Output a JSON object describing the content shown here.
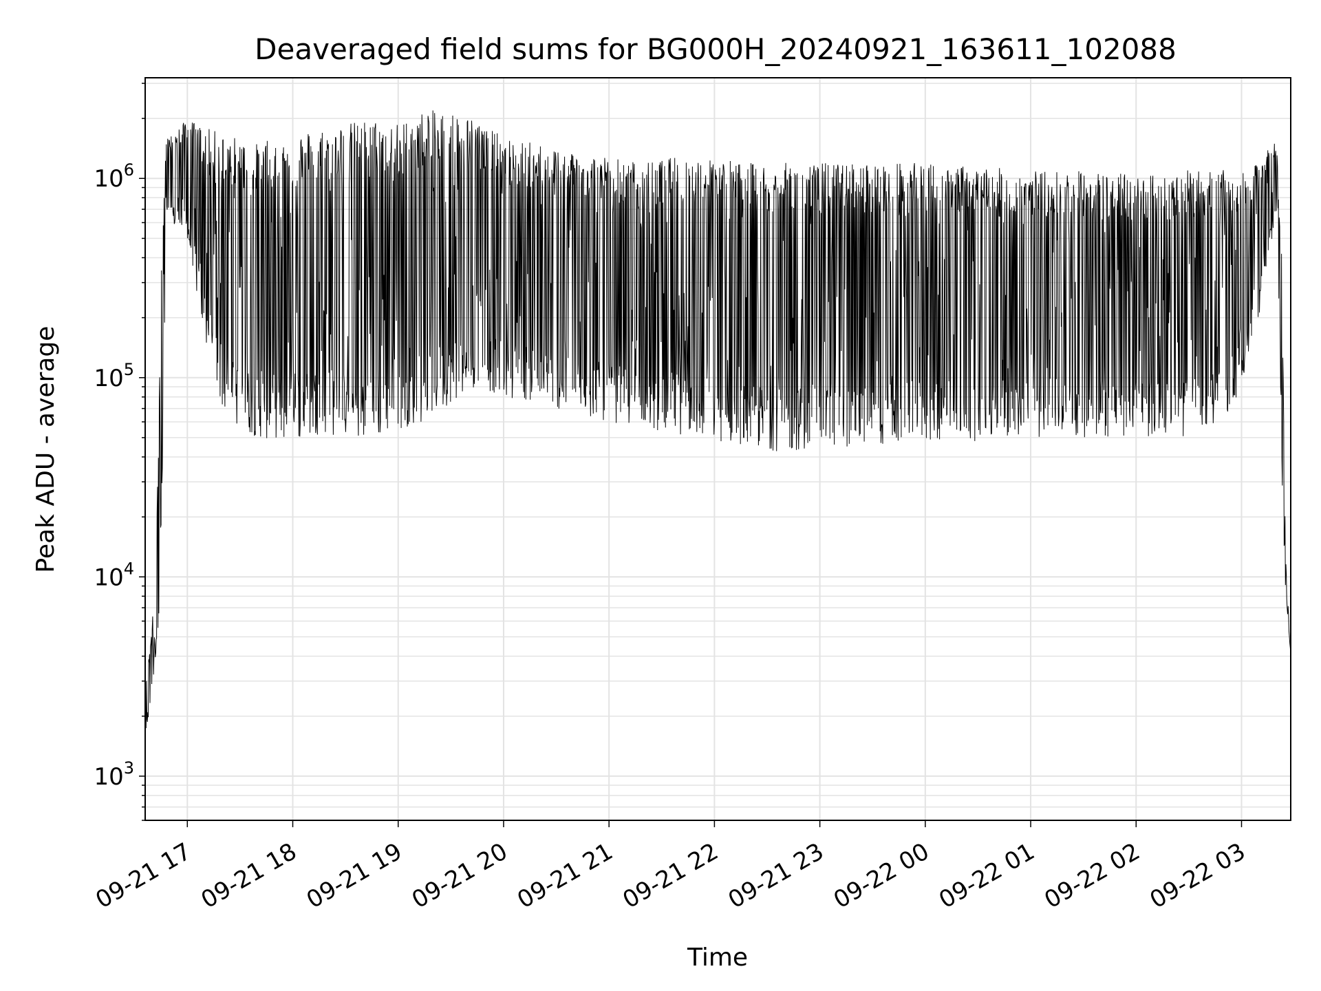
{
  "chart_data": {
    "type": "line",
    "title": "Deaveraged field sums for BG000H_20240921_163611_102088",
    "xlabel": "Time",
    "ylabel": "Peak ADU - average",
    "yscale": "log",
    "ylim": [
      600,
      3200000
    ],
    "xlim": [
      "09-21 16:36",
      "09-22 03:28"
    ],
    "grid": true,
    "line_color": "#000000",
    "grid_color": "#e3e3e3",
    "x_ticks": [
      "09-21 17",
      "09-21 18",
      "09-21 19",
      "09-21 20",
      "09-21 21",
      "09-21 22",
      "09-21 23",
      "09-22 00",
      "09-22 01",
      "09-22 02",
      "09-22 03"
    ],
    "y_ticks": [
      {
        "base": "10",
        "exp": "3",
        "value": 1000
      },
      {
        "base": "10",
        "exp": "4",
        "value": 10000
      },
      {
        "base": "10",
        "exp": "5",
        "value": 100000
      },
      {
        "base": "10",
        "exp": "6",
        "value": 1000000
      }
    ],
    "series": [
      {
        "envelope": {
          "x": [
            "09-21 16:36",
            "09-21 16:40",
            "09-21 16:43",
            "09-21 16:45",
            "09-21 16:48",
            "09-21 16:50",
            "09-21 17:00",
            "09-21 17:10",
            "09-21 17:20",
            "09-21 17:30",
            "09-21 17:40",
            "09-21 17:50",
            "09-21 18:00",
            "09-21 18:15",
            "09-21 18:30",
            "09-21 18:45",
            "09-21 19:00",
            "09-21 19:15",
            "09-21 19:30",
            "09-21 19:45",
            "09-21 20:00",
            "09-21 20:20",
            "09-21 20:40",
            "09-21 21:00",
            "09-21 21:20",
            "09-21 21:40",
            "09-21 22:00",
            "09-21 22:20",
            "09-21 22:40",
            "09-21 23:00",
            "09-21 23:30",
            "09-22 00:00",
            "09-22 00:30",
            "09-22 01:00",
            "09-22 01:30",
            "09-22 02:00",
            "09-22 02:30",
            "09-22 02:50",
            "09-22 03:00",
            "09-22 03:10",
            "09-22 03:15",
            "09-22 03:20",
            "09-22 03:23",
            "09-22 03:25",
            "09-22 03:28"
          ],
          "high": [
            2600,
            6000,
            28000,
            400000,
            1600000,
            1600000,
            2000000,
            1800000,
            1700000,
            1600000,
            1500000,
            1600000,
            1700000,
            1800000,
            1900000,
            2000000,
            1900000,
            2200000,
            2200000,
            2000000,
            1600000,
            1500000,
            1400000,
            1300000,
            1200000,
            1300000,
            1300000,
            1200000,
            1200000,
            1200000,
            1200000,
            1200000,
            1150000,
            1100000,
            1100000,
            1050000,
            1100000,
            1100000,
            1050000,
            1200000,
            1500000,
            1500000,
            400000,
            13000,
            4000
          ],
          "low": [
            1500,
            2600,
            5000,
            10000,
            600000,
            600000,
            500000,
            150000,
            70000,
            55000,
            50000,
            48000,
            48000,
            52000,
            50000,
            48000,
            55000,
            60000,
            75000,
            90000,
            80000,
            75000,
            65000,
            60000,
            55000,
            52000,
            48000,
            45000,
            42000,
            45000,
            45000,
            48000,
            48000,
            50000,
            50000,
            50000,
            50000,
            60000,
            90000,
            180000,
            400000,
            600000,
            30000,
            9000,
            4000
          ]
        }
      }
    ]
  }
}
